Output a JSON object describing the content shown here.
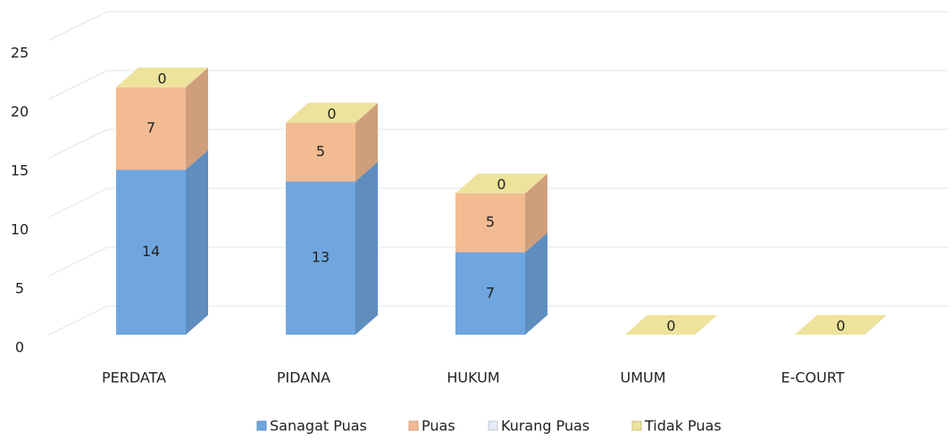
{
  "chart_data": {
    "type": "bar3d_stacked",
    "categories": [
      "PERDATA",
      "PIDANA",
      "HUKUM",
      "UMUM",
      "E-COURT"
    ],
    "series": [
      {
        "name": "Sanagat Puas",
        "color": "#6fa6df",
        "values": [
          14,
          13,
          7,
          0,
          0
        ]
      },
      {
        "name": "Puas",
        "color": "#f3bb92",
        "values": [
          7,
          5,
          5,
          0,
          0
        ]
      },
      {
        "name": "Kurang Puas",
        "color": "#e6ecf6",
        "values": [
          0,
          0,
          0,
          0,
          0
        ]
      },
      {
        "name": "Tidak Puas",
        "color": "#eee39c",
        "values": [
          0,
          0,
          0,
          0,
          0
        ]
      }
    ],
    "ylim": [
      0,
      25
    ],
    "yticks": [
      0,
      5,
      10,
      15,
      20,
      25
    ],
    "grid": true,
    "legend": "bottom"
  }
}
